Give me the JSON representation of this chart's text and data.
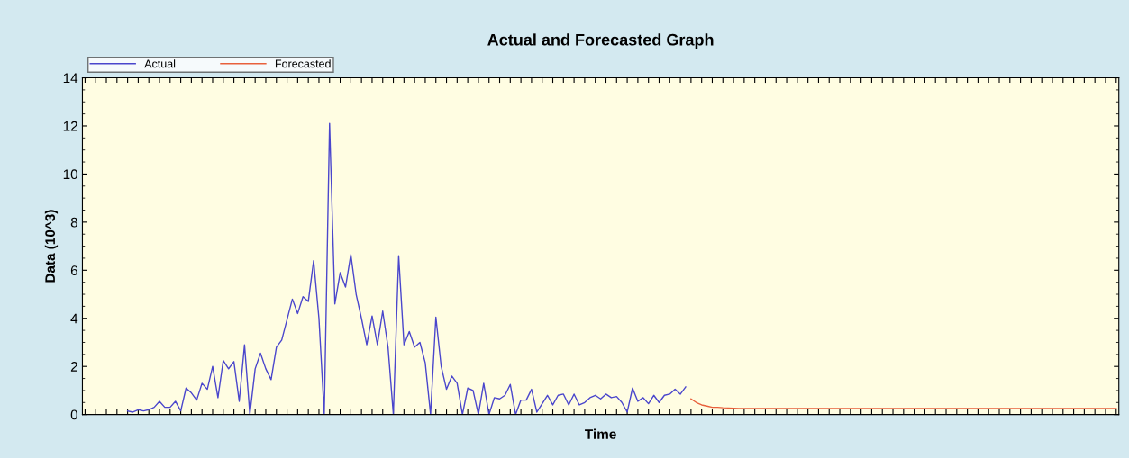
{
  "chart_data": {
    "type": "line",
    "title": "Actual and Forecasted Graph",
    "xlabel": "Time",
    "ylabel": "Data (10^3)",
    "categories": [
      null,
      null,
      null,
      null,
      null,
      null,
      null,
      null,
      null,
      null,
      null,
      null,
      null,
      null,
      null,
      null,
      null,
      null,
      null,
      null,
      null,
      null,
      null,
      null,
      null,
      null,
      null,
      null,
      null,
      null,
      null,
      null,
      null,
      null,
      null,
      null,
      null,
      null,
      null,
      null,
      null,
      null,
      null,
      null,
      null,
      null,
      null,
      null,
      null,
      null,
      null,
      null,
      null,
      null,
      null,
      null,
      null,
      null,
      null,
      null,
      null,
      null,
      null,
      null,
      null,
      null,
      null,
      null,
      null,
      null,
      null,
      null,
      null,
      null,
      null,
      null,
      null,
      null,
      null,
      null,
      null,
      null,
      null,
      null,
      null,
      null,
      null,
      null,
      null,
      null,
      null,
      null,
      null,
      null,
      null,
      null,
      null,
      null,
      null,
      null,
      null,
      null,
      null,
      null,
      null,
      null,
      null,
      null,
      null,
      null,
      null,
      null,
      null,
      null,
      null,
      null,
      null,
      null,
      null,
      null,
      null,
      null,
      null,
      null,
      null,
      null,
      null,
      null,
      null,
      null,
      null,
      null,
      null,
      null,
      null,
      null,
      null,
      null,
      null,
      null,
      null,
      null,
      null,
      null,
      null,
      null,
      null,
      null,
      null,
      null,
      null,
      null,
      null,
      null,
      null,
      null,
      null,
      null,
      null,
      null,
      null,
      null,
      null,
      null,
      null,
      null,
      null,
      null,
      null,
      null,
      null,
      null,
      null,
      null,
      null,
      null,
      null,
      null,
      null,
      null,
      null,
      null,
      null,
      null,
      null,
      null,
      null,
      null,
      null,
      null,
      null,
      null,
      null,
      null,
      null
    ],
    "series": [
      {
        "name": "Actual",
        "color": "#4a46cc",
        "values": [
          null,
          null,
          null,
          null,
          null,
          null,
          null,
          null,
          0.15,
          0.1,
          0.2,
          0.15,
          0.2,
          0.3,
          0.55,
          0.3,
          0.3,
          0.55,
          0.15,
          1.1,
          0.9,
          0.6,
          1.3,
          1.05,
          2.0,
          0.7,
          2.25,
          1.9,
          2.2,
          0.55,
          2.9,
          0,
          1.9,
          2.55,
          1.9,
          1.45,
          2.8,
          3.1,
          3.95,
          4.8,
          4.2,
          4.9,
          4.7,
          6.4,
          4.0,
          0,
          12.1,
          4.6,
          5.9,
          5.3,
          6.65,
          5.0,
          4.0,
          2.9,
          4.1,
          2.9,
          4.3,
          2.8,
          0,
          6.6,
          2.9,
          3.45,
          2.8,
          3.0,
          2.15,
          0,
          4.05,
          2.0,
          1.05,
          1.6,
          1.3,
          0,
          1.1,
          1.0,
          0,
          1.3,
          0,
          0.7,
          0.65,
          0.8,
          1.25,
          0,
          0.6,
          0.6,
          1.05,
          0.1,
          0.45,
          0.8,
          0.4,
          0.8,
          0.85,
          0.4,
          0.85,
          0.4,
          0.5,
          0.7,
          0.8,
          0.65,
          0.85,
          0.7,
          0.75,
          0.5,
          0.1,
          1.1,
          0.55,
          0.7,
          0.45,
          0.8,
          0.5,
          0.8,
          0.85,
          1.05,
          0.85,
          1.15,
          null,
          null,
          null,
          null,
          null,
          null,
          null,
          null,
          null,
          null,
          null,
          null,
          null,
          null,
          null,
          null,
          null,
          null,
          null,
          null,
          null,
          null,
          null,
          null,
          null,
          null,
          null,
          null,
          null,
          null,
          null,
          null,
          null,
          null,
          null,
          null,
          null,
          null,
          null,
          null,
          null,
          null,
          null,
          null,
          null,
          null,
          null,
          null,
          null,
          null,
          null,
          null,
          null,
          null,
          null,
          null,
          null,
          null,
          null,
          null,
          null,
          null,
          null,
          null,
          null,
          null,
          null,
          null,
          null,
          null,
          null,
          null,
          null,
          null,
          null,
          null,
          null,
          null,
          null,
          null,
          null
        ]
      },
      {
        "name": "Forecasted",
        "color": "#e8603c",
        "values": [
          null,
          null,
          null,
          null,
          null,
          null,
          null,
          null,
          null,
          null,
          null,
          null,
          null,
          null,
          null,
          null,
          null,
          null,
          null,
          null,
          null,
          null,
          null,
          null,
          null,
          null,
          null,
          null,
          null,
          null,
          null,
          null,
          null,
          null,
          null,
          null,
          null,
          null,
          null,
          null,
          null,
          null,
          null,
          null,
          null,
          null,
          null,
          null,
          null,
          null,
          null,
          null,
          null,
          null,
          null,
          null,
          null,
          null,
          null,
          null,
          null,
          null,
          null,
          null,
          null,
          null,
          null,
          null,
          null,
          null,
          null,
          null,
          null,
          null,
          null,
          null,
          null,
          null,
          null,
          null,
          null,
          null,
          null,
          null,
          null,
          null,
          null,
          null,
          null,
          null,
          null,
          null,
          null,
          null,
          null,
          null,
          null,
          null,
          null,
          null,
          null,
          null,
          null,
          null,
          null,
          null,
          null,
          null,
          null,
          null,
          null,
          null,
          null,
          null,
          0.65,
          0.5,
          0.4,
          0.35,
          0.3,
          0.3,
          0.28,
          0.27,
          0.26,
          0.25,
          0.25,
          0.25,
          0.25,
          0.25,
          0.25,
          0.25,
          0.25,
          0.25,
          0.25,
          0.25,
          0.25,
          0.25,
          0.25,
          0.25,
          0.25,
          0.25,
          0.25,
          0.25,
          0.25,
          0.25,
          0.25,
          0.25,
          0.25,
          0.25,
          0.25,
          0.25,
          0.25,
          0.25,
          0.25,
          0.25,
          0.25,
          0.25,
          0.25,
          0.25,
          0.25,
          0.25,
          0.25,
          0.25,
          0.25,
          0.25,
          0.25,
          0.25,
          0.25,
          0.25,
          0.25,
          0.25,
          0.25,
          0.25,
          0.25,
          0.25,
          0.25,
          0.25,
          0.25,
          0.25,
          0.25,
          0.25,
          0.25,
          0.25,
          0.25,
          0.25,
          0.25,
          0.25,
          0.25,
          0.25,
          0.25,
          0.25,
          0.25,
          0.25,
          0.25,
          0.25,
          0.25
        ]
      }
    ],
    "ylim": [
      0,
      14
    ],
    "yticks": [
      0,
      2,
      4,
      6,
      8,
      10,
      12,
      14
    ],
    "grid": false,
    "legend": "top left"
  }
}
